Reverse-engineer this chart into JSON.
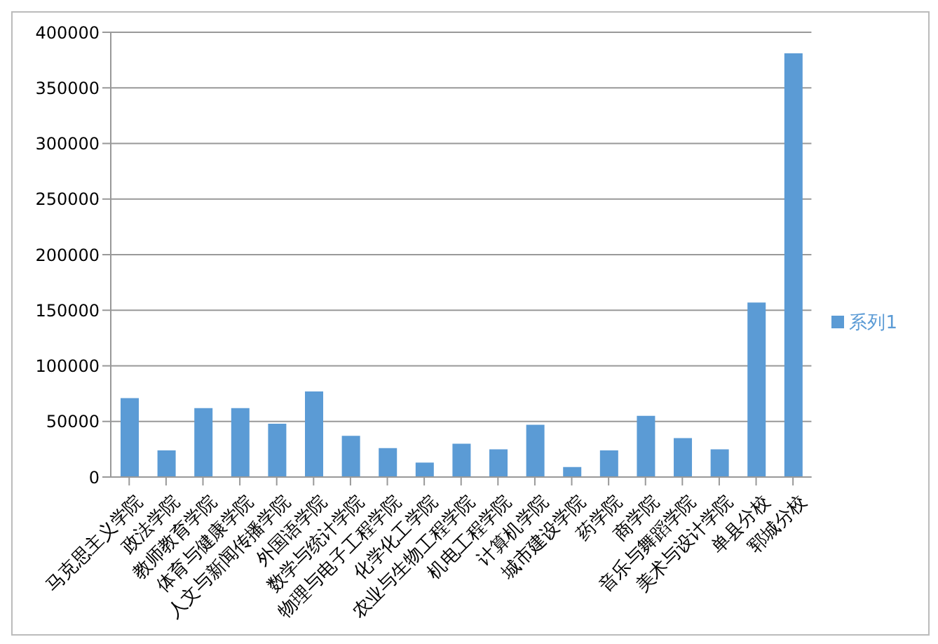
{
  "chart_data": {
    "type": "bar",
    "categories": [
      "马克思主义学院",
      "政法学院",
      "教师教育学院",
      "体育与健康学院",
      "人文与新闻传播学院",
      "外国语学院",
      "数学与统计学院",
      "物理与电子工程学院",
      "化学化工学院",
      "农业与生物工程学院",
      "机电工程学院",
      "计算机学院",
      "城市建设学院",
      "药学院",
      "商学院",
      "音乐与舞蹈学院",
      "美术与设计学院",
      "单县分校",
      "郓城分校"
    ],
    "series": [
      {
        "name": "系列1",
        "color": "#5b9bd5",
        "values": [
          71000,
          24000,
          62000,
          62000,
          48000,
          77000,
          37000,
          26000,
          13000,
          30000,
          25000,
          47000,
          9000,
          24000,
          55000,
          35000,
          25000,
          157000,
          381000
        ]
      }
    ],
    "ylim": [
      0,
      400000
    ],
    "yticks": [
      0,
      50000,
      100000,
      150000,
      200000,
      250000,
      300000,
      350000,
      400000
    ],
    "grid": "y",
    "legend": "right"
  }
}
